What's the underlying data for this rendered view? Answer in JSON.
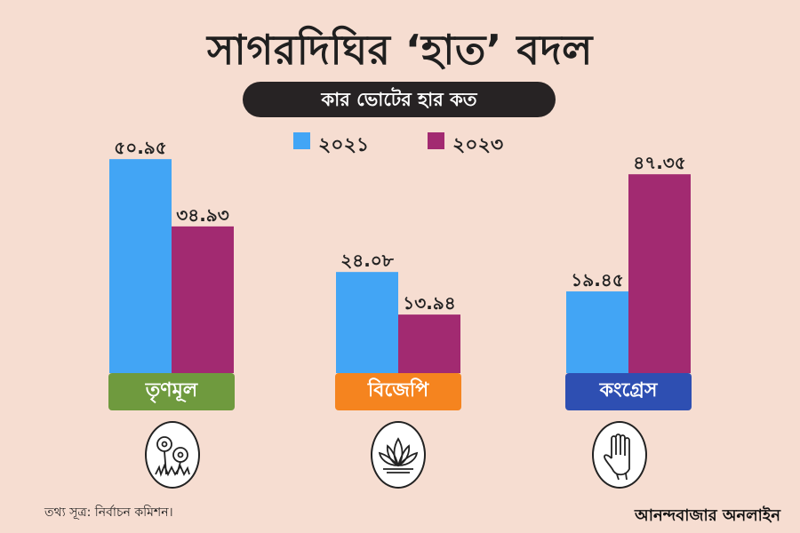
{
  "header": {
    "title": "সাগরদিঘির ‘হাত’ বদল",
    "subtitle": "কার ভোটের হার কত"
  },
  "chart_data": {
    "type": "bar",
    "categories": [
      "তৃণমূল",
      "বিজেপি",
      "কংগ্রেস"
    ],
    "series": [
      {
        "name": "২০২১",
        "color": "#42a5f5",
        "values": [
          50.95,
          24.08,
          19.45
        ],
        "labels": [
          "৫০.৯৫",
          "২৪.০৮",
          "১৯.৪৫"
        ]
      },
      {
        "name": "২০২৩",
        "color": "#a22a71",
        "values": [
          34.93,
          13.94,
          47.35
        ],
        "labels": [
          "৩৪.৯৩",
          "১৩.৯৪",
          "৪৭.৩৫"
        ]
      }
    ],
    "category_colors": [
      "#6f9a3e",
      "#f5841f",
      "#2e4fb2"
    ],
    "ylim": [
      0,
      55
    ],
    "grid": false,
    "legend_position": "top-center"
  },
  "logos": [
    {
      "icon": "grass-flower-icon"
    },
    {
      "icon": "lotus-icon"
    },
    {
      "icon": "hand-icon"
    }
  ],
  "footer": {
    "source": "তথ্য সূত্র: নির্বাচন কমিশন।",
    "brand": "আনন্দবাজার অনলাইন"
  }
}
